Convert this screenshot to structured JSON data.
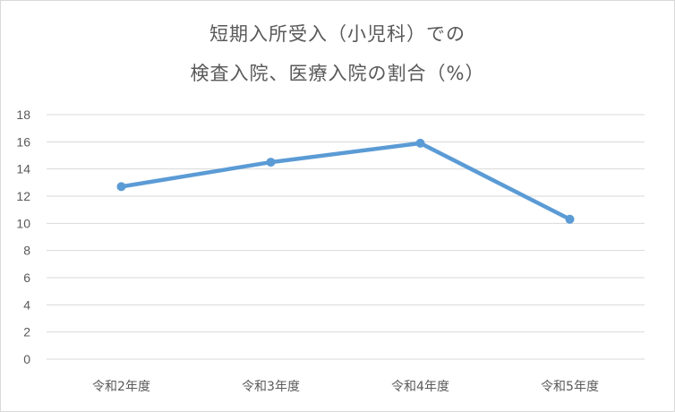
{
  "chart_data": {
    "type": "line",
    "title_lines": [
      "短期入所受入（小児科）での",
      "検査入院、医療入院の割合（%）"
    ],
    "categories": [
      "令和2年度",
      "令和3年度",
      "令和4年度",
      "令和5年度"
    ],
    "series": [
      {
        "values": [
          12.7,
          14.5,
          15.9,
          10.3
        ],
        "color": "#5b9bd5"
      }
    ],
    "xlabel": "",
    "ylabel": "",
    "ylim": [
      0,
      18
    ],
    "yticks": [
      0,
      2,
      4,
      6,
      8,
      10,
      12,
      14,
      16,
      18
    ],
    "grid": true,
    "legend": "none",
    "grid_color": "#d9d9d9",
    "text_color": "#595959"
  }
}
